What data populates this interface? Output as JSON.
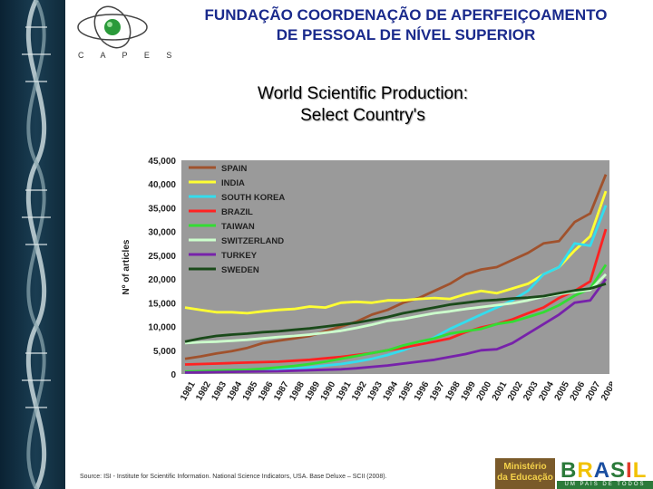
{
  "header": {
    "line1": "FUNDAÇÃO COORDENAÇÃO DE APERFEIÇOAMENTO",
    "line2": "DE PESSOAL DE NÍVEL SUPERIOR",
    "logo_text": "C A P E S"
  },
  "title": {
    "line1": "World Scientific Production:",
    "line2": "Select Country's"
  },
  "footer": {
    "source": "Source: ISI - Institute for Scientific Information. National Science Indicators, USA. Base Deluxe – SCII (2008).",
    "ministerio_line1": "Ministério",
    "ministerio_line2": "da Educação",
    "brasil_word": "BRASIL",
    "brasil_tagline": "UM PAÍS DE TODOS"
  },
  "colors": {
    "header_text": "#1a2a8c",
    "plot_bg": "#9a9a9a"
  },
  "chart_data": {
    "type": "line",
    "title": "World Scientific Production: Select Country's",
    "xlabel": "",
    "ylabel": "Nº of articles",
    "ylim": [
      0,
      45000
    ],
    "yticks": [
      0,
      5000,
      10000,
      15000,
      20000,
      25000,
      30000,
      35000,
      40000,
      45000
    ],
    "ytick_labels": [
      "0",
      "5,000",
      "10,000",
      "15,000",
      "20,000",
      "25,000",
      "30,000",
      "35,000",
      "40,000",
      "45,000"
    ],
    "legend_position": "top-left",
    "grid": false,
    "x": [
      "1981",
      "1982",
      "1983",
      "1984",
      "1985",
      "1986",
      "1987",
      "1988",
      "1989",
      "1990",
      "1991",
      "1992",
      "1993",
      "1994",
      "1995",
      "1996",
      "1997",
      "1998",
      "1999",
      "2000",
      "2001",
      "2002",
      "2003",
      "2004",
      "2005",
      "2006",
      "2007",
      "2008"
    ],
    "series": [
      {
        "name": "SPAIN",
        "color": "#a0522d",
        "values": [
          3200,
          3700,
          4300,
          4800,
          5500,
          6500,
          7000,
          7500,
          8000,
          9000,
          10000,
          11000,
          12500,
          13500,
          15000,
          16000,
          17500,
          19000,
          21000,
          22000,
          22500,
          24000,
          25500,
          27500,
          28000,
          32000,
          33800,
          42000
        ]
      },
      {
        "name": "INDIA",
        "color": "#ffff33",
        "values": [
          14000,
          13500,
          13000,
          13000,
          12800,
          13200,
          13500,
          13700,
          14200,
          14000,
          15000,
          15200,
          15000,
          15500,
          15500,
          15800,
          16000,
          15800,
          16800,
          17500,
          17000,
          18000,
          19000,
          21000,
          22500,
          26000,
          29000,
          38500
        ]
      },
      {
        "name": "SOUTH KOREA",
        "color": "#33ddee",
        "values": [
          300,
          400,
          500,
          600,
          700,
          800,
          900,
          1100,
          1400,
          1800,
          2100,
          2600,
          3200,
          4000,
          5000,
          6300,
          7700,
          9500,
          11000,
          12500,
          14000,
          15500,
          17500,
          21000,
          22500,
          27500,
          27000,
          35500
        ]
      },
      {
        "name": "BRAZIL",
        "color": "#ff2222",
        "values": [
          2000,
          2100,
          2200,
          2300,
          2400,
          2500,
          2600,
          2800,
          3000,
          3300,
          3600,
          4000,
          4400,
          5000,
          5500,
          6200,
          6800,
          7500,
          8800,
          9800,
          10500,
          11500,
          12800,
          14000,
          16000,
          17500,
          19500,
          30500
        ]
      },
      {
        "name": "TAIWAN",
        "color": "#33dd33",
        "values": [
          500,
          600,
          700,
          800,
          900,
          1100,
          1400,
          1700,
          2100,
          2600,
          3200,
          3800,
          4400,
          5000,
          6000,
          6800,
          7500,
          8500,
          9000,
          9500,
          10500,
          11000,
          12000,
          13000,
          14500,
          16500,
          18000,
          23000
        ]
      },
      {
        "name": "SWITZERLAND",
        "color": "#ccffcc",
        "values": [
          6500,
          6700,
          6800,
          7000,
          7200,
          7500,
          7800,
          8000,
          8300,
          8700,
          9100,
          9700,
          10400,
          11200,
          11600,
          12200,
          12800,
          13200,
          13700,
          14100,
          14500,
          14900,
          15500,
          16300,
          16800,
          17300,
          17700,
          21000
        ]
      },
      {
        "name": "TURKEY",
        "color": "#7722aa",
        "values": [
          300,
          350,
          400,
          450,
          500,
          550,
          600,
          700,
          800,
          900,
          1000,
          1200,
          1500,
          1800,
          2200,
          2600,
          3000,
          3600,
          4200,
          5000,
          5200,
          6500,
          8500,
          10500,
          12500,
          15000,
          15500,
          20000
        ]
      },
      {
        "name": "SWEDEN",
        "color": "#1a4a1a",
        "values": [
          6800,
          7500,
          8000,
          8300,
          8500,
          8800,
          9000,
          9300,
          9600,
          10000,
          10400,
          10800,
          11400,
          12000,
          12800,
          13400,
          14000,
          14600,
          15000,
          15400,
          15600,
          15900,
          16100,
          16400,
          17000,
          17600,
          18000,
          19000
        ]
      }
    ]
  }
}
